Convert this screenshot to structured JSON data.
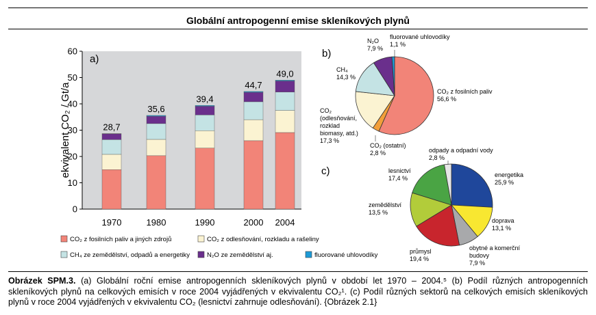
{
  "title": "Globální antropogenní emise skleníkových plynů",
  "colors": {
    "co2_fossil": "#f28478",
    "co2_landuse": "#fbf3d2",
    "ch4": "#c4e3e4",
    "n2o": "#6a2f8c",
    "fgas": "#1d9ad6",
    "co2_other": "#f29f3a",
    "energy": "#1f479b",
    "transport": "#f8e731",
    "buildings": "#a8a9ab",
    "industry": "#c8252d",
    "agriculture": "#b2cc3a",
    "forestry": "#4aa444",
    "waste": "#e6e6e6"
  },
  "chart_data": [
    {
      "type": "bar",
      "panel_label": "a)",
      "ylabel": "ekvivalent CO₂ / Gt/a",
      "ylim": [
        0,
        60
      ],
      "yticks": [
        0,
        10,
        20,
        30,
        40,
        50,
        60
      ],
      "categories": [
        "1970",
        "1980",
        "1990",
        "2000",
        "2004"
      ],
      "totals": [
        "28,7",
        "35,6",
        "39,4",
        "44,7",
        "49,0"
      ],
      "stacked": true,
      "series": [
        {
          "name": "CO₂ z fosilních paliv a jiných zdrojů",
          "color": "#f28478",
          "values": [
            15.0,
            20.3,
            23.2,
            26.0,
            29.1
          ]
        },
        {
          "name": "CO₂ z odlesňování, rozkladu a rašeliny",
          "color": "#fbf3d2",
          "values": [
            5.8,
            6.2,
            6.6,
            8.0,
            8.4
          ]
        },
        {
          "name": "CH₄ ze zemědělství, odpadů a energetiky",
          "color": "#c4e3e4",
          "values": [
            5.6,
            6.0,
            6.0,
            6.8,
            7.0
          ]
        },
        {
          "name": "N₂O ze zemědělství aj.",
          "color": "#6a2f8c",
          "values": [
            2.2,
            2.8,
            3.3,
            3.6,
            4.2
          ]
        },
        {
          "name": "fluorované uhlovodíky",
          "color": "#1d9ad6",
          "values": [
            0.1,
            0.3,
            0.3,
            0.3,
            0.3
          ]
        }
      ],
      "legend_position": "bottom"
    },
    {
      "type": "pie",
      "panel_label": "b)",
      "slices": [
        {
          "label": "CO₂ z fosilních paliv",
          "value_label": "56,6 %",
          "value": 56.6,
          "color": "#f28478"
        },
        {
          "label": "CO₂ (ostatní)",
          "value_label": "2,8 %",
          "value": 2.8,
          "color": "#f29f3a"
        },
        {
          "label": "CO₂ (odlesňování, rozklad biomasy, atd.)",
          "value_label": "17,3 %",
          "value": 17.3,
          "color": "#fbf3d2"
        },
        {
          "label": "CH₄",
          "value_label": "14,3 %",
          "value": 14.3,
          "color": "#c4e3e4"
        },
        {
          "label": "N₂O",
          "value_label": "7,9 %",
          "value": 7.9,
          "color": "#6a2f8c"
        },
        {
          "label": "fluorované uhlovodíky",
          "value_label": "1,1 %",
          "value": 1.1,
          "color": "#1d9ad6"
        }
      ]
    },
    {
      "type": "pie",
      "panel_label": "c)",
      "slices": [
        {
          "label": "energetika",
          "value_label": "25,9 %",
          "value": 25.9,
          "color": "#1f479b"
        },
        {
          "label": "doprava",
          "value_label": "13,1 %",
          "value": 13.1,
          "color": "#f8e731"
        },
        {
          "label": "obytné a komerční budovy",
          "value_label": "7,9 %",
          "value": 7.9,
          "color": "#a8a9ab"
        },
        {
          "label": "průmysl",
          "value_label": "19,4 %",
          "value": 19.4,
          "color": "#c8252d"
        },
        {
          "label": "zemědělství",
          "value_label": "13,5 %",
          "value": 13.5,
          "color": "#b2cc3a"
        },
        {
          "label": "lesnictví",
          "value_label": "17,4 %",
          "value": 17.4,
          "color": "#4aa444"
        },
        {
          "label": "odpady a odpadní vody",
          "value_label": "2,8 %",
          "value": 2.8,
          "color": "#e6e6e6"
        }
      ]
    }
  ],
  "caption": {
    "label": "Obrázek SPM.3.",
    "text": "(a) Globální roční emise antropogenních skleníkových plynů v období let 1970 – 2004.⁵ (b) Podíl různých antropogenních skleníkových plynů na celkových emisích v roce 2004 vyjádřených v ekvivalentu CO₂¹. (c) Podíl různých sektorů na celkových emisích skleníkových plynů v roce 2004 vyjádřených v ekvivalentu CO₂ (lesnictví zahrnuje odlesňování). {Obrázek 2.1}"
  }
}
